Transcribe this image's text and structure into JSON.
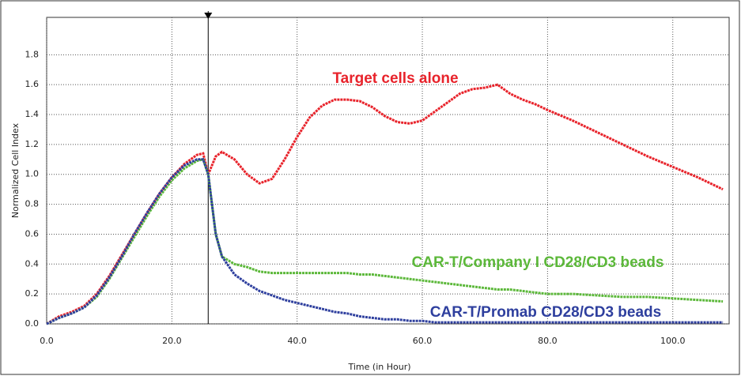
{
  "chart_data": {
    "type": "line",
    "x_label": "Time (in Hour)",
    "y_label": "Normalized Cell Index",
    "xlim": [
      0,
      109
    ],
    "ylim": [
      0,
      2.05
    ],
    "xticks": [
      {
        "value": 0,
        "label": "0.0"
      },
      {
        "value": 20,
        "label": "20.0"
      },
      {
        "value": 40,
        "label": "40.0"
      },
      {
        "value": 60,
        "label": "60.0"
      },
      {
        "value": 80,
        "label": "80.0"
      },
      {
        "value": 100,
        "label": "100.0"
      }
    ],
    "yticks": [
      {
        "value": 0,
        "label": "0.0"
      },
      {
        "value": 0.2,
        "label": "0.2"
      },
      {
        "value": 0.4,
        "label": "0.4"
      },
      {
        "value": 0.6,
        "label": "0.6"
      },
      {
        "value": 0.8,
        "label": "0.8"
      },
      {
        "value": 1,
        "label": "1.0"
      },
      {
        "value": 1.2,
        "label": "1.2"
      },
      {
        "value": 1.4,
        "label": "1.4"
      },
      {
        "value": 1.6,
        "label": "1.6"
      },
      {
        "value": 1.8,
        "label": "1.8"
      }
    ],
    "grid": true,
    "vline_x": 25.8,
    "x": [
      0,
      2,
      4,
      6,
      8,
      10,
      12,
      14,
      16,
      18,
      20,
      22,
      24,
      25,
      25.8,
      27,
      28,
      30,
      32,
      34,
      36,
      38,
      40,
      42,
      44,
      46,
      48,
      50,
      52,
      54,
      56,
      58,
      60,
      62,
      64,
      66,
      68,
      70,
      72,
      74,
      76,
      78,
      80,
      84,
      88,
      92,
      96,
      100,
      104,
      108
    ],
    "series": [
      {
        "name": "Target cells alone",
        "color": "#e8232b",
        "values": [
          0,
          0.05,
          0.08,
          0.12,
          0.2,
          0.32,
          0.46,
          0.6,
          0.74,
          0.87,
          0.98,
          1.07,
          1.13,
          1.14,
          1.0,
          1.12,
          1.15,
          1.1,
          1.0,
          0.94,
          0.97,
          1.1,
          1.25,
          1.38,
          1.46,
          1.5,
          1.5,
          1.49,
          1.45,
          1.39,
          1.35,
          1.34,
          1.36,
          1.42,
          1.48,
          1.54,
          1.57,
          1.58,
          1.6,
          1.54,
          1.5,
          1.47,
          1.43,
          1.36,
          1.28,
          1.2,
          1.12,
          1.05,
          0.98,
          0.9
        ]
      },
      {
        "name": "CAR-T/Company I CD28/CD3 beads",
        "color": "#5cb83a",
        "values": [
          0,
          0.04,
          0.07,
          0.11,
          0.18,
          0.3,
          0.44,
          0.58,
          0.72,
          0.85,
          0.96,
          1.04,
          1.09,
          1.1,
          1.0,
          0.6,
          0.45,
          0.4,
          0.38,
          0.35,
          0.34,
          0.34,
          0.34,
          0.34,
          0.34,
          0.34,
          0.34,
          0.33,
          0.33,
          0.32,
          0.31,
          0.3,
          0.29,
          0.28,
          0.27,
          0.26,
          0.25,
          0.24,
          0.23,
          0.23,
          0.22,
          0.21,
          0.2,
          0.2,
          0.19,
          0.18,
          0.18,
          0.17,
          0.16,
          0.15
        ]
      },
      {
        "name": "CAR-T/Promab CD28/CD3 beads",
        "color": "#2e3f9e",
        "values": [
          0,
          0.04,
          0.07,
          0.11,
          0.19,
          0.31,
          0.45,
          0.6,
          0.74,
          0.87,
          0.98,
          1.06,
          1.1,
          1.1,
          1.0,
          0.6,
          0.45,
          0.33,
          0.27,
          0.22,
          0.19,
          0.16,
          0.14,
          0.12,
          0.1,
          0.08,
          0.07,
          0.05,
          0.04,
          0.03,
          0.03,
          0.02,
          0.02,
          0.01,
          0.01,
          0.01,
          0.01,
          0.01,
          0.01,
          0.01,
          0.01,
          0.01,
          0.01,
          0.01,
          0.01,
          0.01,
          0.01,
          0.01,
          0.01,
          0.01
        ]
      }
    ]
  }
}
